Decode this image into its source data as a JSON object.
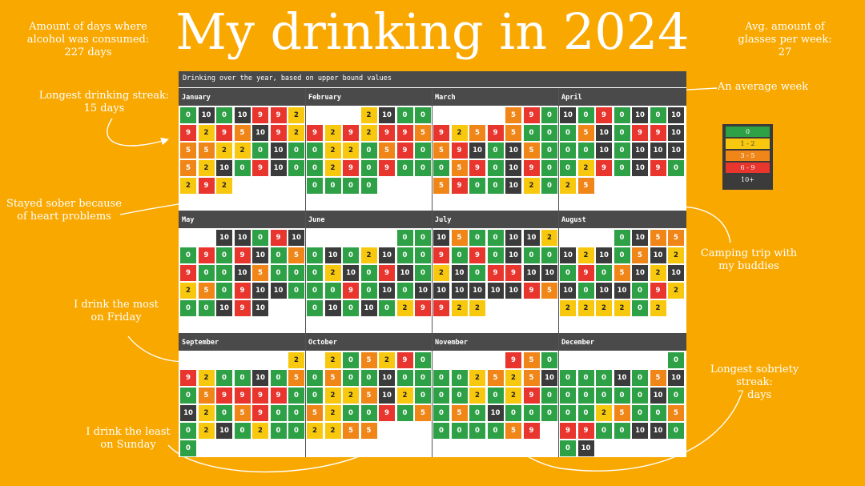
{
  "title": "My drinking in 2024",
  "stats": {
    "left": [
      "Amount of days where",
      "alcohol was consumed:",
      "227 days"
    ],
    "right": [
      "Avg. amount of",
      "glasses per week:",
      "27"
    ]
  },
  "panel_title": "Drinking over the year, based on upper bound values",
  "annotations": {
    "longest_streak": [
      "Longest drinking streak:",
      "15 days"
    ],
    "sober_heart": [
      "Stayed sober because",
      "of heart problems"
    ],
    "drink_most": [
      "I drink the most",
      "on Friday"
    ],
    "drink_least": [
      "I drink the least",
      "on Sunday"
    ],
    "average_week": [
      "An average week"
    ],
    "camping": [
      "Camping trip with",
      "my buddies"
    ],
    "sobriety_streak": [
      "Longest sobriety streak:",
      "7 days"
    ]
  },
  "colors": {
    "0": "#2EA147",
    "1-2": "#F8C80E",
    "3-5": "#F08518",
    "6-9": "#E8352E",
    "10+": "#3B3B3B",
    "background": "#F9A800",
    "header": "#4A4A4A"
  },
  "chart_data": {
    "type": "heatmap",
    "title": "Drinking over the year, based on upper bound values",
    "legend": [
      {
        "label": "0",
        "color": "#2EA147"
      },
      {
        "label": "1 - 2",
        "color": "#F8C80E"
      },
      {
        "label": "3 - 5",
        "color": "#F08518"
      },
      {
        "label": "6 - 9",
        "color": "#E8352E"
      },
      {
        "label": "10+",
        "color": "#3B3B3B"
      }
    ],
    "months": [
      {
        "name": "January",
        "start": 0,
        "values": [
          0,
          10,
          0,
          10,
          9,
          9,
          2,
          9,
          2,
          9,
          5,
          10,
          9,
          2,
          5,
          5,
          2,
          2,
          0,
          10,
          0,
          5,
          2,
          10,
          0,
          9,
          10,
          0,
          2,
          9,
          2
        ]
      },
      {
        "name": "February",
        "start": 3,
        "values": [
          2,
          10,
          0,
          0,
          9,
          2,
          9,
          2,
          9,
          9,
          5,
          0,
          2,
          2,
          0,
          5,
          9,
          0,
          0,
          2,
          9,
          0,
          9,
          0,
          0,
          0,
          0,
          0,
          0
        ]
      },
      {
        "name": "March",
        "start": 4,
        "values": [
          5,
          9,
          0,
          9,
          2,
          5,
          9,
          5,
          0,
          0,
          5,
          9,
          10,
          0,
          10,
          5,
          0,
          0,
          5,
          9,
          0,
          10,
          9,
          0,
          5,
          9,
          0,
          0,
          10,
          2,
          0
        ]
      },
      {
        "name": "April",
        "start": 0,
        "values": [
          10,
          0,
          9,
          0,
          10,
          0,
          10,
          0,
          5,
          10,
          0,
          9,
          9,
          10,
          0,
          0,
          10,
          0,
          10,
          10,
          10,
          0,
          2,
          9,
          0,
          10,
          9,
          0,
          2,
          5
        ]
      },
      {
        "name": "May",
        "start": 2,
        "values": [
          10,
          10,
          0,
          9,
          10,
          0,
          9,
          0,
          9,
          10,
          0,
          5,
          9,
          0,
          0,
          10,
          5,
          0,
          0,
          2,
          5,
          0,
          9,
          10,
          10,
          0,
          0,
          0,
          10,
          9,
          10
        ]
      },
      {
        "name": "June",
        "start": 5,
        "values": [
          0,
          0,
          0,
          10,
          0,
          2,
          10,
          0,
          0,
          0,
          2,
          10,
          0,
          9,
          10,
          0,
          0,
          0,
          9,
          0,
          10,
          0,
          10,
          0,
          10,
          0,
          10,
          0,
          2,
          9
        ]
      },
      {
        "name": "July",
        "start": 0,
        "values": [
          10,
          5,
          0,
          0,
          10,
          10,
          2,
          9,
          0,
          9,
          0,
          10,
          0,
          0,
          2,
          10,
          0,
          9,
          9,
          10,
          10,
          10,
          10,
          10,
          10,
          10,
          9,
          5,
          9,
          2,
          2
        ]
      },
      {
        "name": "August",
        "start": 3,
        "values": [
          0,
          10,
          5,
          5,
          10,
          2,
          10,
          0,
          5,
          10,
          2,
          0,
          9,
          0,
          5,
          10,
          2,
          10,
          10,
          0,
          10,
          10,
          0,
          9,
          2,
          2,
          2,
          2,
          2,
          0,
          2
        ]
      },
      {
        "name": "September",
        "start": 6,
        "values": [
          2,
          9,
          2,
          0,
          0,
          10,
          0,
          5,
          0,
          5,
          9,
          9,
          9,
          9,
          0,
          10,
          2,
          0,
          5,
          9,
          0,
          0,
          0,
          2,
          10,
          0,
          2,
          0,
          0,
          0
        ]
      },
      {
        "name": "October",
        "start": 1,
        "values": [
          2,
          0,
          5,
          2,
          9,
          0,
          0,
          5,
          0,
          0,
          10,
          0,
          0,
          0,
          2,
          2,
          5,
          10,
          2,
          0,
          5,
          2,
          0,
          0,
          9,
          0,
          5,
          2,
          2,
          5,
          5
        ]
      },
      {
        "name": "November",
        "start": 4,
        "values": [
          9,
          5,
          0,
          0,
          0,
          2,
          5,
          2,
          5,
          10,
          0,
          0,
          2,
          0,
          2,
          9,
          0,
          0,
          5,
          0,
          10,
          0,
          0,
          0,
          0,
          0,
          0,
          0,
          5,
          9
        ]
      },
      {
        "name": "December",
        "start": 6,
        "values": [
          0,
          0,
          0,
          0,
          10,
          0,
          5,
          10,
          0,
          0,
          0,
          0,
          0,
          10,
          0,
          0,
          0,
          2,
          5,
          0,
          0,
          5,
          9,
          9,
          0,
          0,
          10,
          10,
          0,
          0,
          10
        ]
      }
    ]
  }
}
